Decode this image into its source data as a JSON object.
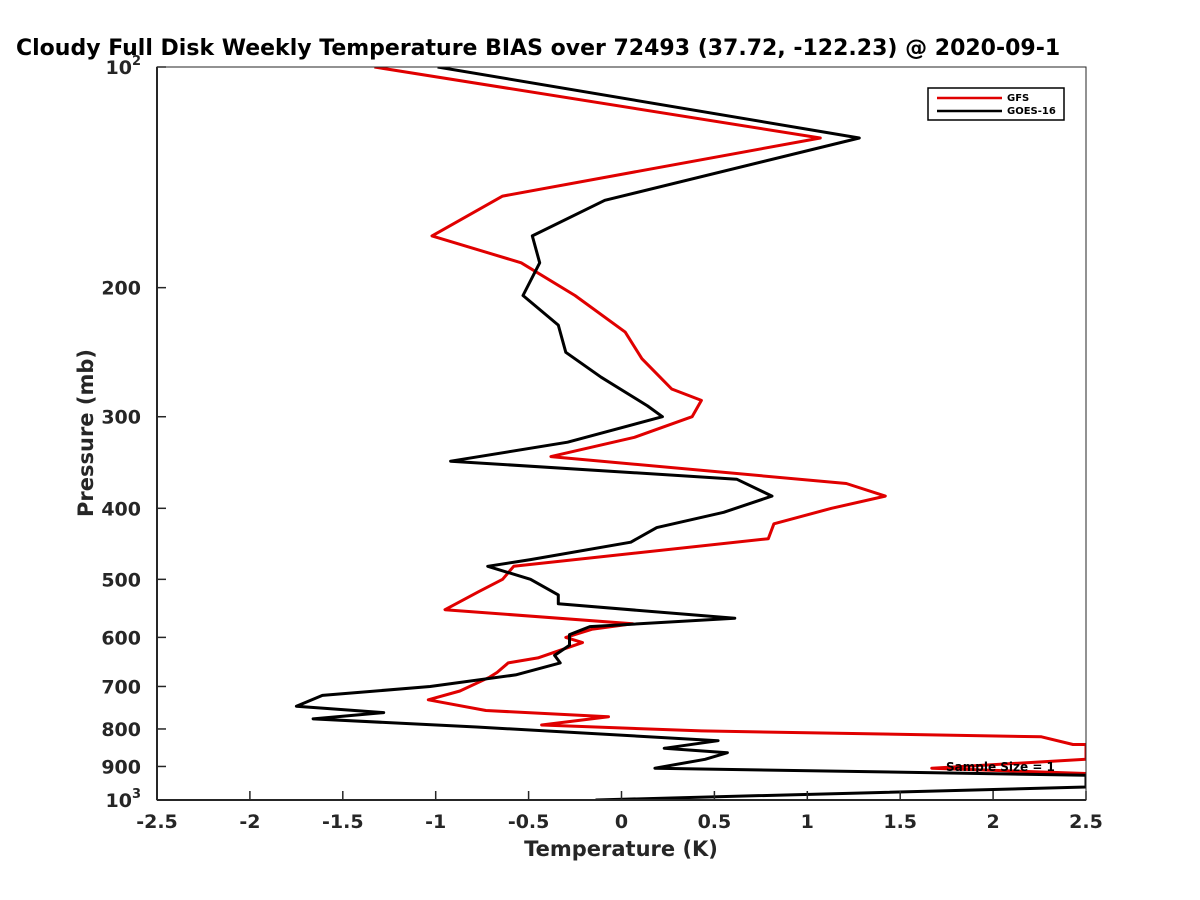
{
  "chart_data": {
    "type": "line",
    "title": "Cloudy Full Disk Weekly Temperature BIAS over 72493 (37.72, -122.23) @ 2020-09-1",
    "xlabel": "Temperature (K)",
    "ylabel": "Pressure (mb)",
    "xlim": [
      -2.5,
      2.5
    ],
    "ylim": [
      100,
      1000
    ],
    "yscale": "log",
    "y_reversed": true,
    "x_ticks": [
      "-2.5",
      "-2",
      "-1.5",
      "-1",
      "-0.5",
      "0",
      "0.5",
      "1",
      "1.5",
      "2",
      "2.5"
    ],
    "y_ticks": [
      {
        "value": 100,
        "base": "10",
        "exp": "2"
      },
      {
        "value": 200,
        "label": "200"
      },
      {
        "value": 300,
        "label": "300"
      },
      {
        "value": 400,
        "label": "400"
      },
      {
        "value": 500,
        "label": "500"
      },
      {
        "value": 600,
        "label": "600"
      },
      {
        "value": 700,
        "label": "700"
      },
      {
        "value": 800,
        "label": "800"
      },
      {
        "value": 900,
        "label": "900"
      },
      {
        "value": 1000,
        "base": "10",
        "exp": "3"
      }
    ],
    "legend": {
      "placement": "top-right"
    },
    "annotation": "Sample Size = 1",
    "series": [
      {
        "name": "GFS",
        "color": "#e00000",
        "points": [
          {
            "x": -1.33,
            "p": 100
          },
          {
            "x": 1.07,
            "p": 125
          },
          {
            "x": -0.64,
            "p": 150
          },
          {
            "x": -1.02,
            "p": 170
          },
          {
            "x": -0.54,
            "p": 185
          },
          {
            "x": -0.25,
            "p": 205
          },
          {
            "x": 0.02,
            "p": 230
          },
          {
            "x": 0.11,
            "p": 250
          },
          {
            "x": 0.27,
            "p": 275
          },
          {
            "x": 0.43,
            "p": 285
          },
          {
            "x": 0.38,
            "p": 300
          },
          {
            "x": 0.07,
            "p": 320
          },
          {
            "x": -0.38,
            "p": 340
          },
          {
            "x": 1.21,
            "p": 370
          },
          {
            "x": 1.42,
            "p": 385
          },
          {
            "x": 1.13,
            "p": 400
          },
          {
            "x": 0.82,
            "p": 420
          },
          {
            "x": 0.79,
            "p": 440
          },
          {
            "x": -0.58,
            "p": 480
          },
          {
            "x": -0.64,
            "p": 500
          },
          {
            "x": -0.77,
            "p": 520
          },
          {
            "x": -0.95,
            "p": 550
          },
          {
            "x": 0.06,
            "p": 575
          },
          {
            "x": -0.16,
            "p": 585
          },
          {
            "x": -0.3,
            "p": 600
          },
          {
            "x": -0.21,
            "p": 610
          },
          {
            "x": -0.45,
            "p": 640
          },
          {
            "x": -0.61,
            "p": 650
          },
          {
            "x": -0.67,
            "p": 670
          },
          {
            "x": -0.71,
            "p": 680
          },
          {
            "x": -0.87,
            "p": 710
          },
          {
            "x": -1.04,
            "p": 730
          },
          {
            "x": -0.73,
            "p": 755
          },
          {
            "x": -0.07,
            "p": 770
          },
          {
            "x": -0.43,
            "p": 790
          },
          {
            "x": 0.43,
            "p": 805
          },
          {
            "x": 2.26,
            "p": 820
          },
          {
            "x": 2.43,
            "p": 840
          },
          {
            "x": 2.5,
            "p": 840
          },
          {
            "x": 2.5,
            "p": 880
          },
          {
            "x": 1.67,
            "p": 905
          },
          {
            "x": 2.5,
            "p": 920
          }
        ]
      },
      {
        "name": "GOES-16",
        "color": "#000000",
        "points": [
          {
            "x": -0.99,
            "p": 100
          },
          {
            "x": 1.28,
            "p": 125
          },
          {
            "x": -0.09,
            "p": 152
          },
          {
            "x": -0.48,
            "p": 170
          },
          {
            "x": -0.44,
            "p": 185
          },
          {
            "x": -0.53,
            "p": 205
          },
          {
            "x": -0.34,
            "p": 225
          },
          {
            "x": -0.3,
            "p": 245
          },
          {
            "x": -0.11,
            "p": 265
          },
          {
            "x": 0.14,
            "p": 290
          },
          {
            "x": 0.22,
            "p": 300
          },
          {
            "x": -0.29,
            "p": 325
          },
          {
            "x": -0.92,
            "p": 345
          },
          {
            "x": 0.62,
            "p": 365
          },
          {
            "x": 0.81,
            "p": 385
          },
          {
            "x": 0.55,
            "p": 405
          },
          {
            "x": 0.19,
            "p": 425
          },
          {
            "x": 0.05,
            "p": 445
          },
          {
            "x": -0.49,
            "p": 470
          },
          {
            "x": -0.72,
            "p": 480
          },
          {
            "x": -0.49,
            "p": 500
          },
          {
            "x": -0.34,
            "p": 525
          },
          {
            "x": -0.34,
            "p": 540
          },
          {
            "x": 0.61,
            "p": 565
          },
          {
            "x": -0.17,
            "p": 580
          },
          {
            "x": -0.28,
            "p": 595
          },
          {
            "x": -0.28,
            "p": 615
          },
          {
            "x": -0.36,
            "p": 635
          },
          {
            "x": -0.33,
            "p": 650
          },
          {
            "x": -0.57,
            "p": 675
          },
          {
            "x": -1.03,
            "p": 700
          },
          {
            "x": -1.61,
            "p": 720
          },
          {
            "x": -1.75,
            "p": 745
          },
          {
            "x": -1.28,
            "p": 760
          },
          {
            "x": -1.66,
            "p": 775
          },
          {
            "x": -0.78,
            "p": 795
          },
          {
            "x": 0.52,
            "p": 830
          },
          {
            "x": 0.23,
            "p": 850
          },
          {
            "x": 0.57,
            "p": 862
          },
          {
            "x": 0.45,
            "p": 880
          },
          {
            "x": 0.18,
            "p": 905
          },
          {
            "x": 2.5,
            "p": 925
          },
          {
            "x": 2.5,
            "p": 960
          },
          {
            "x": -0.14,
            "p": 1000
          }
        ]
      }
    ]
  }
}
